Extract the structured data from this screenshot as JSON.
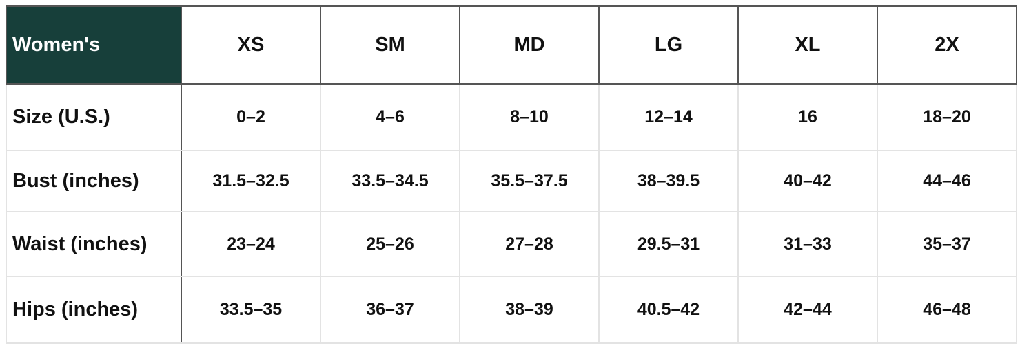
{
  "header": {
    "title": "Women's",
    "columns": [
      "XS",
      "SM",
      "MD",
      "LG",
      "XL",
      "2X"
    ]
  },
  "table": {
    "rows": [
      [
        "Size (U.S.)",
        "0–2",
        "4–6",
        "8–10",
        "12–14",
        "16",
        "18–20"
      ],
      [
        "Bust (inches)",
        "31.5–32.5",
        "33.5–34.5",
        "35.5–37.5",
        "38–39.5",
        "40–42",
        "44–46"
      ],
      [
        "Waist (inches)",
        "23–24",
        "25–26",
        "27–28",
        "29.5–31",
        "31–33",
        "35–37"
      ],
      [
        "Hips (inches)",
        "33.5–35",
        "36–37",
        "38–39",
        "40.5–42",
        "42–44",
        "46–48"
      ]
    ]
  }
}
